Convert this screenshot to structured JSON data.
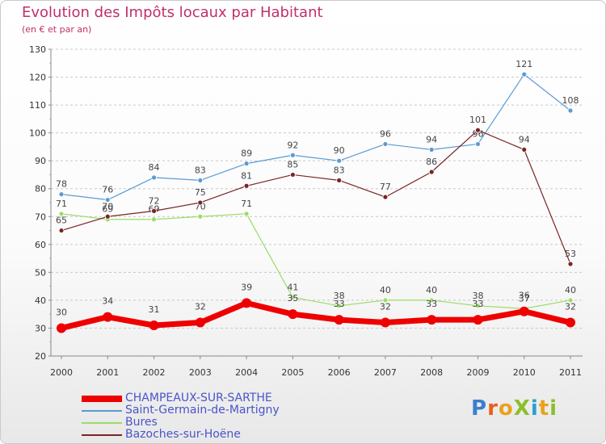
{
  "title": "Evolution des Impôts locaux par Habitant",
  "subtitle": "(en € et par an)",
  "logo": {
    "text": "ProXiti",
    "letter_colors": [
      "#3a7fcf",
      "#e8601c",
      "#e8a21c",
      "#8bbf2a",
      "#2a9fd0",
      "#e8a21c",
      "#8bbf2a"
    ]
  },
  "chart_data": {
    "type": "line",
    "x": [
      "2000",
      "2001",
      "2002",
      "2003",
      "2004",
      "2005",
      "2006",
      "2007",
      "2008",
      "2009",
      "2010",
      "2011"
    ],
    "ylim": [
      20,
      130
    ],
    "yticks": [
      "20",
      "30",
      "40",
      "50",
      "60",
      "70",
      "80",
      "90",
      "100",
      "110",
      "120",
      "130"
    ],
    "grid": "horizontal, dashed",
    "legend_position": "bottom-left",
    "series": [
      {
        "name": "CHAMPEAUX-SUR-SARTHE",
        "color": "#ee0000",
        "emphasis": "thick",
        "values": [
          30,
          34,
          31,
          32,
          39,
          35,
          33,
          32,
          33,
          33,
          36,
          32
        ],
        "labels": [
          "30",
          "34",
          "31",
          "32",
          "39",
          "35",
          "33",
          "32",
          "33",
          "33",
          "36",
          "32"
        ]
      },
      {
        "name": "Saint-Germain-de-Martigny",
        "color": "#5a9bd4",
        "values": [
          78,
          76,
          84,
          83,
          89,
          92,
          90,
          96,
          94,
          96,
          121,
          108
        ],
        "labels": [
          "78",
          "76",
          "84",
          "83",
          "89",
          "92",
          "90",
          "96",
          "94",
          "96",
          "121",
          "108"
        ]
      },
      {
        "name": "Bures",
        "color": "#99dd66",
        "values": [
          71,
          69,
          69,
          70,
          71,
          41,
          38,
          40,
          40,
          38,
          37,
          40
        ],
        "labels": [
          "71",
          "69",
          "69",
          "70",
          "71",
          "41",
          "38",
          "40",
          "40",
          "38",
          "37",
          "40"
        ]
      },
      {
        "name": "Bazoches-sur-Hoëne",
        "color": "#7a2424",
        "values": [
          65,
          70,
          72,
          75,
          81,
          85,
          83,
          77,
          86,
          101,
          94,
          53
        ],
        "labels": [
          "65",
          "70",
          "72",
          "75",
          "81",
          "85",
          "83",
          "77",
          "86",
          "101",
          "94",
          "53"
        ]
      }
    ]
  }
}
